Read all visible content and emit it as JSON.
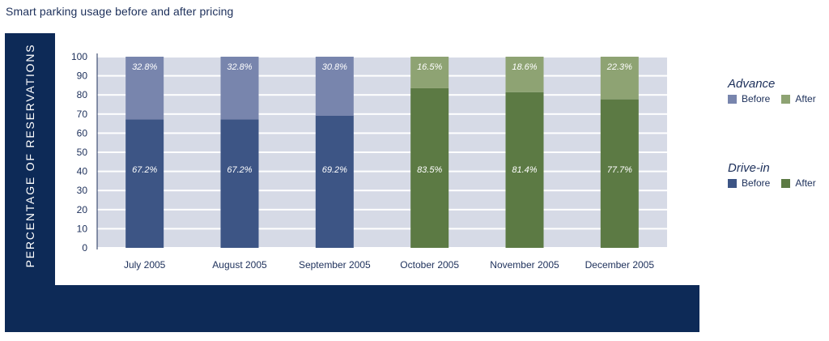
{
  "page": {
    "title": "Smart parking usage before and after pricing"
  },
  "chart_data": {
    "type": "bar",
    "stacked": true,
    "title": "Smart parking usage before and after pricing",
    "ylabel": "PERCENTAGE OF RESERVATIONS",
    "xlabel": "",
    "ylim": [
      0,
      100
    ],
    "yticks": [
      0,
      10,
      20,
      30,
      40,
      50,
      60,
      70,
      80,
      90,
      100
    ],
    "grid": true,
    "categories": [
      "July 2005",
      "August 2005",
      "September 2005",
      "October 2005",
      "November 2005",
      "December 2005"
    ],
    "period": [
      "before",
      "before",
      "before",
      "after",
      "after",
      "after"
    ],
    "series": [
      {
        "name": "Drive-in",
        "values": [
          67.2,
          67.2,
          69.2,
          83.5,
          81.4,
          77.7
        ],
        "labels": [
          "67.2%",
          "67.2%",
          "69.2%",
          "83.5%",
          "81.4%",
          "77.7%"
        ]
      },
      {
        "name": "Advance",
        "values": [
          32.8,
          32.8,
          30.8,
          16.5,
          18.6,
          22.3
        ],
        "labels": [
          "32.8%",
          "32.8%",
          "30.8%",
          "16.5%",
          "18.6%",
          "22.3%"
        ]
      }
    ],
    "colors": {
      "drive_in_before": "#3d5585",
      "drive_in_after": "#5c7a44",
      "advance_before": "#7885ad",
      "advance_after": "#8ea373",
      "grid_band": "#d6dae6",
      "frame": "#0d2a57"
    },
    "legend_placement": "right"
  },
  "legend": {
    "groups": [
      {
        "title": "Advance",
        "before_label": "Before",
        "after_label": "After",
        "before_color": "#7885ad",
        "after_color": "#8ea373"
      },
      {
        "title": "Drive-in",
        "before_label": "Before",
        "after_label": "After",
        "before_color": "#3d5585",
        "after_color": "#5c7a44"
      }
    ]
  }
}
